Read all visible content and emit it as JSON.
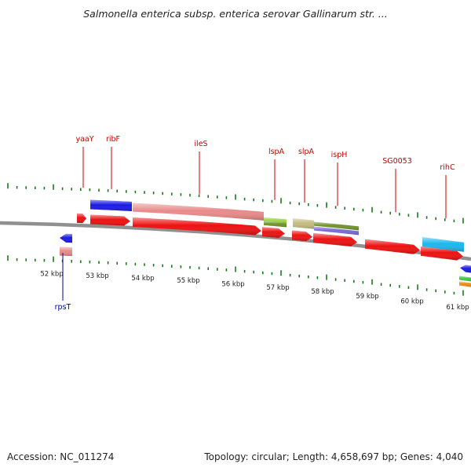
{
  "title": "Salmonella enterica subsp. enterica serovar Gallinarum str. ...",
  "footer": {
    "accession": "Accession: NC_011274",
    "summary": "Topology: circular; Length: 4,658,697 bp; Genes: 4,040"
  },
  "colors": {
    "gene_label": "#cc0000",
    "rpsT_label": "#0000aa",
    "tick": "#1a7a1a",
    "backbone": "#909090",
    "red_gene": "#ee1111",
    "blue_gene": "#1a1ae6",
    "salmon": "#ea8a8a",
    "lime": "#9ed848",
    "khaki": "#c4bc80",
    "olive": "#70922c",
    "purple": "#7a6ad6",
    "cyan": "#1ab8ee",
    "green": "#44c844",
    "orange": "#f08a10"
  },
  "kbp_labels": [
    "52 kbp",
    "53 kbp",
    "54 kbp",
    "55 kbp",
    "56 kbp",
    "57 kbp",
    "58 kbp",
    "59 kbp",
    "60 kbp",
    "61 kbp"
  ],
  "gene_labels": [
    "yaaY",
    "ribF",
    "ileS",
    "lspA",
    "slpA",
    "ispH",
    "SG0053",
    "rihC",
    "rpsT"
  ]
}
